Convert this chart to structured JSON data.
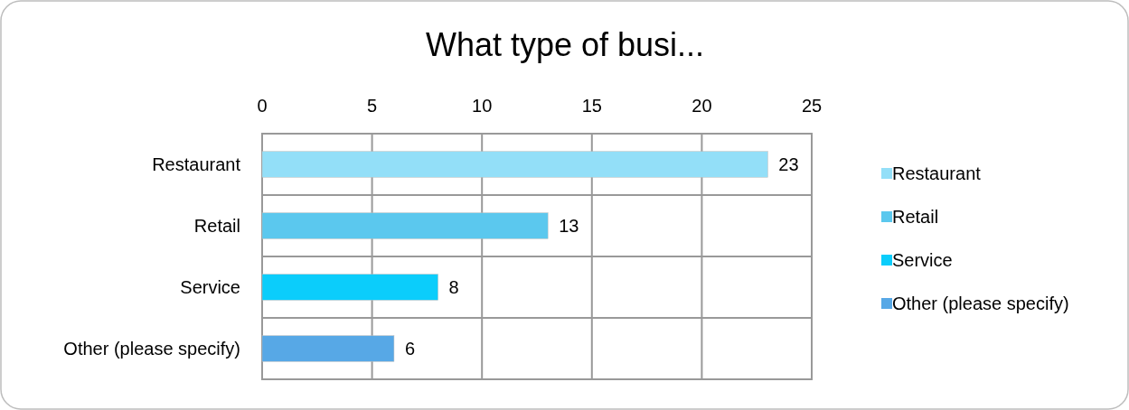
{
  "chart_data": {
    "type": "bar",
    "orientation": "horizontal",
    "stacked": true,
    "title": "What type of busi...",
    "categories": [
      "Restaurant",
      "Retail",
      "Service",
      "Other (please specify)"
    ],
    "series": [
      {
        "name": "Restaurant",
        "color": "#93dff8",
        "values": [
          23,
          null,
          null,
          null
        ]
      },
      {
        "name": "Retail",
        "color": "#5bc8ee",
        "values": [
          null,
          13,
          null,
          null
        ]
      },
      {
        "name": "Service",
        "color": "#0bcdfb",
        "values": [
          null,
          null,
          8,
          null
        ]
      },
      {
        "name": "Other (please specify)",
        "color": "#57a8e6",
        "values": [
          null,
          null,
          null,
          6
        ]
      }
    ],
    "xlim": [
      0,
      25
    ],
    "xticks": [
      0,
      5,
      10,
      15,
      20,
      25
    ],
    "grid": true,
    "legend": "right",
    "data_labels": true
  }
}
